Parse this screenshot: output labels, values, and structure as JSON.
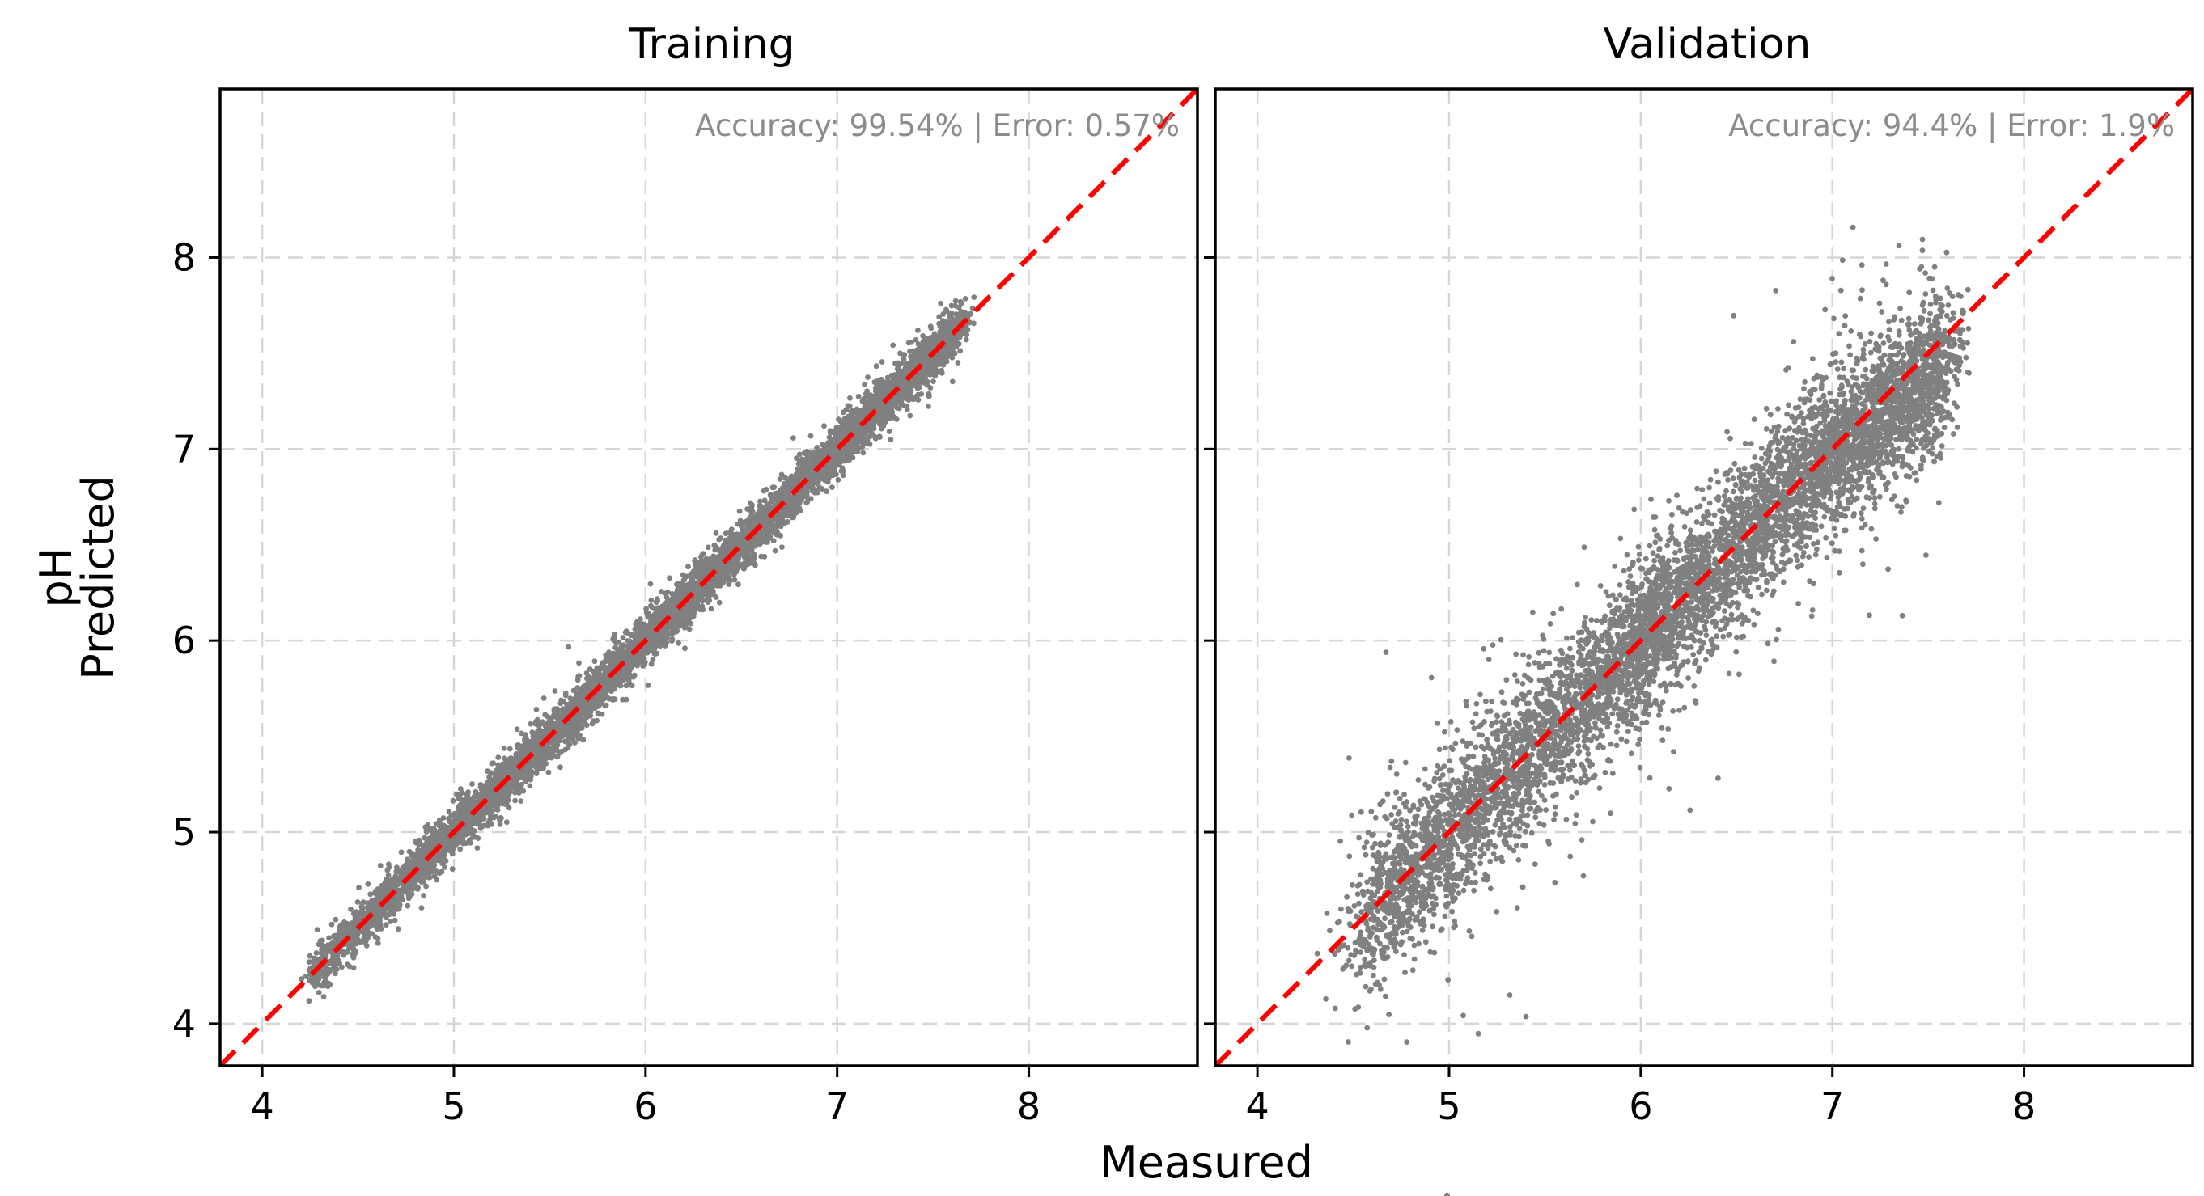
{
  "figure": {
    "xlabel": "Measured",
    "ylabel_line1": "pH",
    "ylabel_line2": "Predicted"
  },
  "chart_data": [
    {
      "type": "scatter",
      "title": "Training",
      "annotation": "Accuracy: 99.54% | Error: 0.57%",
      "xlabel": "Measured",
      "ylabel": "pH Predicted",
      "xlim": [
        3.78,
        8.88
      ],
      "ylim": [
        3.78,
        8.88
      ],
      "xticks": [
        4,
        5,
        6,
        7,
        8
      ],
      "yticks": [
        4,
        5,
        6,
        7,
        8
      ],
      "xtick_labels": [
        "4",
        "5",
        "6",
        "7",
        "8"
      ],
      "ytick_labels": [
        "4",
        "5",
        "6",
        "7",
        "8"
      ],
      "grid": true,
      "reference_line": {
        "x": [
          3.78,
          8.88
        ],
        "y": [
          3.78,
          8.88
        ],
        "style": "dashed",
        "color": "#ff0000"
      },
      "point_color": "#808080",
      "point_cloud": {
        "x_range": [
          4.2,
          7.75
        ],
        "relation": "predicted ≈ measured",
        "spread_sd": 0.06,
        "approx_points": 9000
      }
    },
    {
      "type": "scatter",
      "title": "Validation",
      "annotation": "Accuracy: 94.4% | Error: 1.9%",
      "xlabel": "Measured",
      "ylabel": "pH Predicted",
      "xlim": [
        3.78,
        8.88
      ],
      "ylim": [
        3.78,
        8.88
      ],
      "xticks": [
        4,
        5,
        6,
        7,
        8
      ],
      "yticks": [
        4,
        5,
        6,
        7,
        8
      ],
      "xtick_labels": [
        "4",
        "5",
        "6",
        "7",
        "8"
      ],
      "ytick_labels": [],
      "grid": true,
      "reference_line": {
        "x": [
          3.78,
          8.88
        ],
        "y": [
          3.78,
          8.88
        ],
        "style": "dashed",
        "color": "#ff0000"
      },
      "point_color": "#808080",
      "point_cloud": {
        "x_range": [
          4.25,
          7.75
        ],
        "relation": "predicted ≈ measured, slight underestimation above 7",
        "spread_sd": 0.2,
        "approx_points": 9000
      }
    }
  ]
}
